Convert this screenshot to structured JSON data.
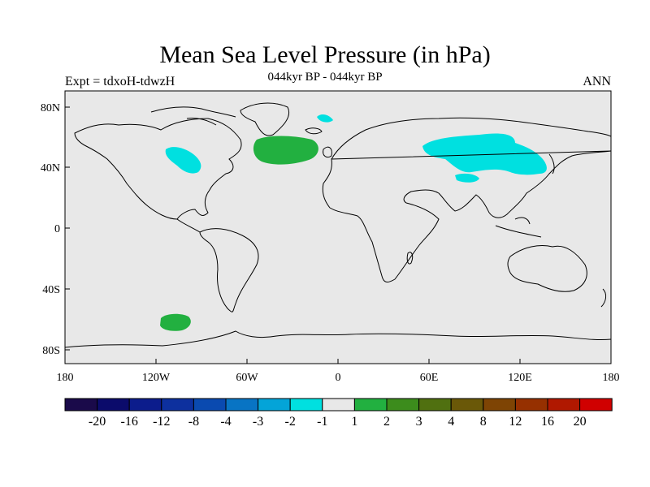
{
  "map": {
    "title": "Mean Sea Level Pressure (in hPa)",
    "subtitle": "044kyr BP - 044kyr BP",
    "left_label": "Expt = tdxoH-tdwzH",
    "right_label": "ANN",
    "lat_ticks": [
      "80N",
      "40N",
      "0",
      "40S",
      "80S"
    ],
    "lon_ticks": [
      "180",
      "120W",
      "60W",
      "0",
      "60E",
      "120E",
      "180"
    ],
    "background_color": "#e8e8e8"
  },
  "colorbar": {
    "colors": [
      "#1a0a4a",
      "#0b0b6b",
      "#0c1c8c",
      "#0d309e",
      "#0a4ab0",
      "#0874c4",
      "#04a4d8",
      "#00e0e0",
      "#e8e8e8",
      "#22b040",
      "#3c8c1c",
      "#507010",
      "#6a5808",
      "#7e4404",
      "#963000",
      "#b01800",
      "#d00000"
    ],
    "labels": [
      "-20",
      "-16",
      "-12",
      "-8",
      "-4",
      "-3",
      "-2",
      "-1",
      "1",
      "2",
      "3",
      "4",
      "8",
      "12",
      "16",
      "20"
    ]
  }
}
